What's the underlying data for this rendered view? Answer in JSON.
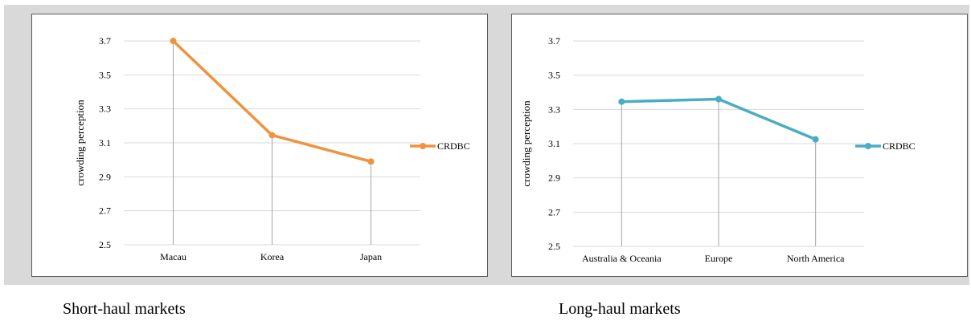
{
  "captions": [
    "Short-haul markets",
    "Long-haul markets"
  ],
  "chart_data": [
    {
      "type": "line",
      "categories": [
        "Macau",
        "Korea",
        "Japan"
      ],
      "series": [
        {
          "name": "CRDBC",
          "values": [
            3.7,
            3.145,
            2.99
          ],
          "color": "#f0923e"
        }
      ],
      "ylabel": "crowding perception",
      "ylim": [
        2.5,
        3.7
      ],
      "yticks": [
        "2.5",
        "2.7",
        "2.9",
        "3.1",
        "3.3",
        "3.5",
        "3.7"
      ],
      "grid": true,
      "drop_lines": true,
      "legend_position": "right"
    },
    {
      "type": "line",
      "categories": [
        "Australia & Oceania",
        "Europe",
        "North America"
      ],
      "series": [
        {
          "name": "CRDBC",
          "values": [
            3.345,
            3.36,
            3.125
          ],
          "color": "#4aacc5"
        }
      ],
      "ylabel": "crowding perception",
      "ylim": [
        2.5,
        3.7
      ],
      "yticks": [
        "2.5",
        "2.7",
        "2.9",
        "3.1",
        "3.3",
        "3.5",
        "3.7"
      ],
      "grid": true,
      "drop_lines": true,
      "legend_position": "right"
    }
  ]
}
